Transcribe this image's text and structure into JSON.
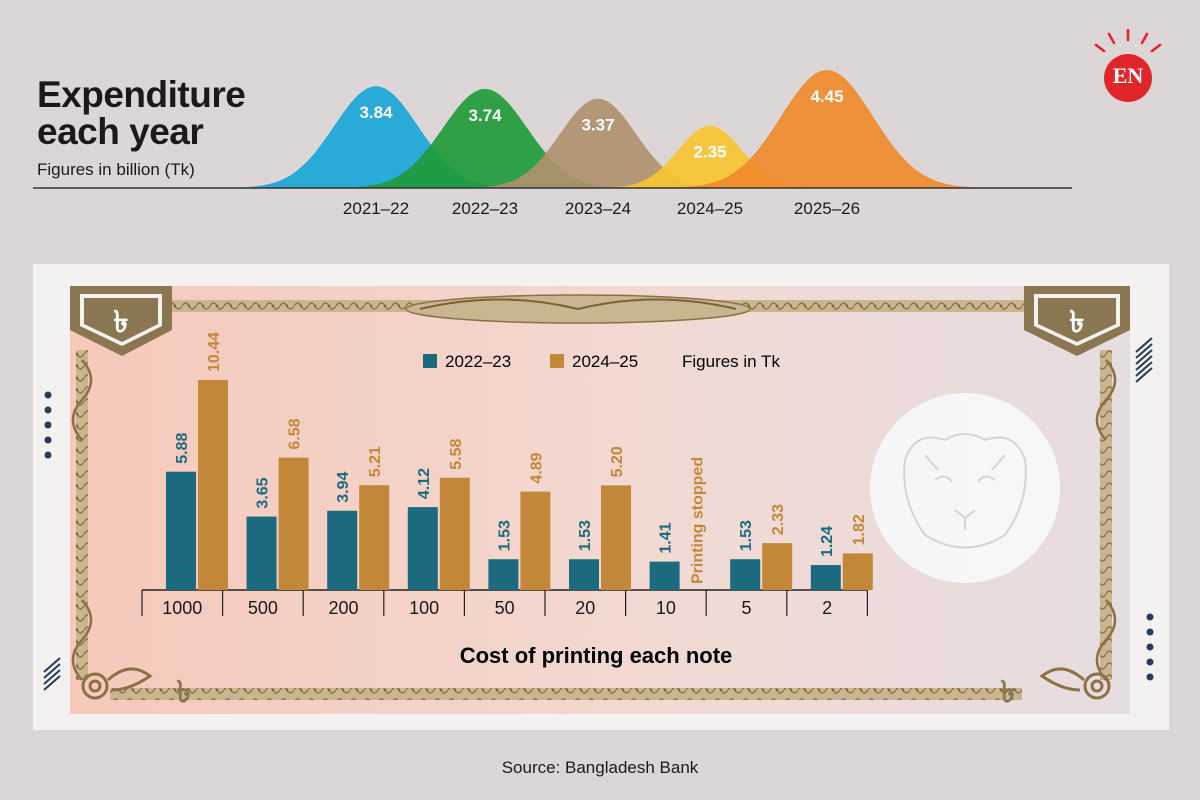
{
  "header": {
    "title_line1": "Expenditure",
    "title_line2": "each year",
    "subtitle": "Figures in billion (Tk)",
    "logo_text": "EN"
  },
  "footer": {
    "source": "Source: Bangladesh Bank"
  },
  "chart_data": [
    {
      "type": "area",
      "title": "Expenditure each year",
      "subtitle": "Figures in billion (Tk)",
      "categories": [
        "2021–22",
        "2022–23",
        "2023–24",
        "2024–25",
        "2025–26"
      ],
      "values": [
        3.84,
        3.74,
        3.37,
        2.35,
        4.45
      ],
      "colors": [
        "#1aa6d6",
        "#1f9b3a",
        "#b0916e",
        "#f7c531",
        "#f08a2c"
      ]
    },
    {
      "type": "bar",
      "title": "Cost of printing each note",
      "note": "Figures in Tk",
      "categories": [
        "1000",
        "500",
        "200",
        "100",
        "50",
        "20",
        "10",
        "5",
        "2"
      ],
      "series": [
        {
          "name": "2022–23",
          "values": [
            5.88,
            3.65,
            3.94,
            4.12,
            1.53,
            1.53,
            1.41,
            1.53,
            1.24
          ],
          "color": "#1b6a7e"
        },
        {
          "name": "2024–25",
          "values": [
            10.44,
            6.58,
            5.21,
            5.58,
            4.89,
            5.2,
            null,
            2.33,
            1.82
          ],
          "color": "#c3873a"
        }
      ],
      "annotation": "Printing stopped",
      "ylim": [
        0,
        10.44
      ]
    }
  ]
}
